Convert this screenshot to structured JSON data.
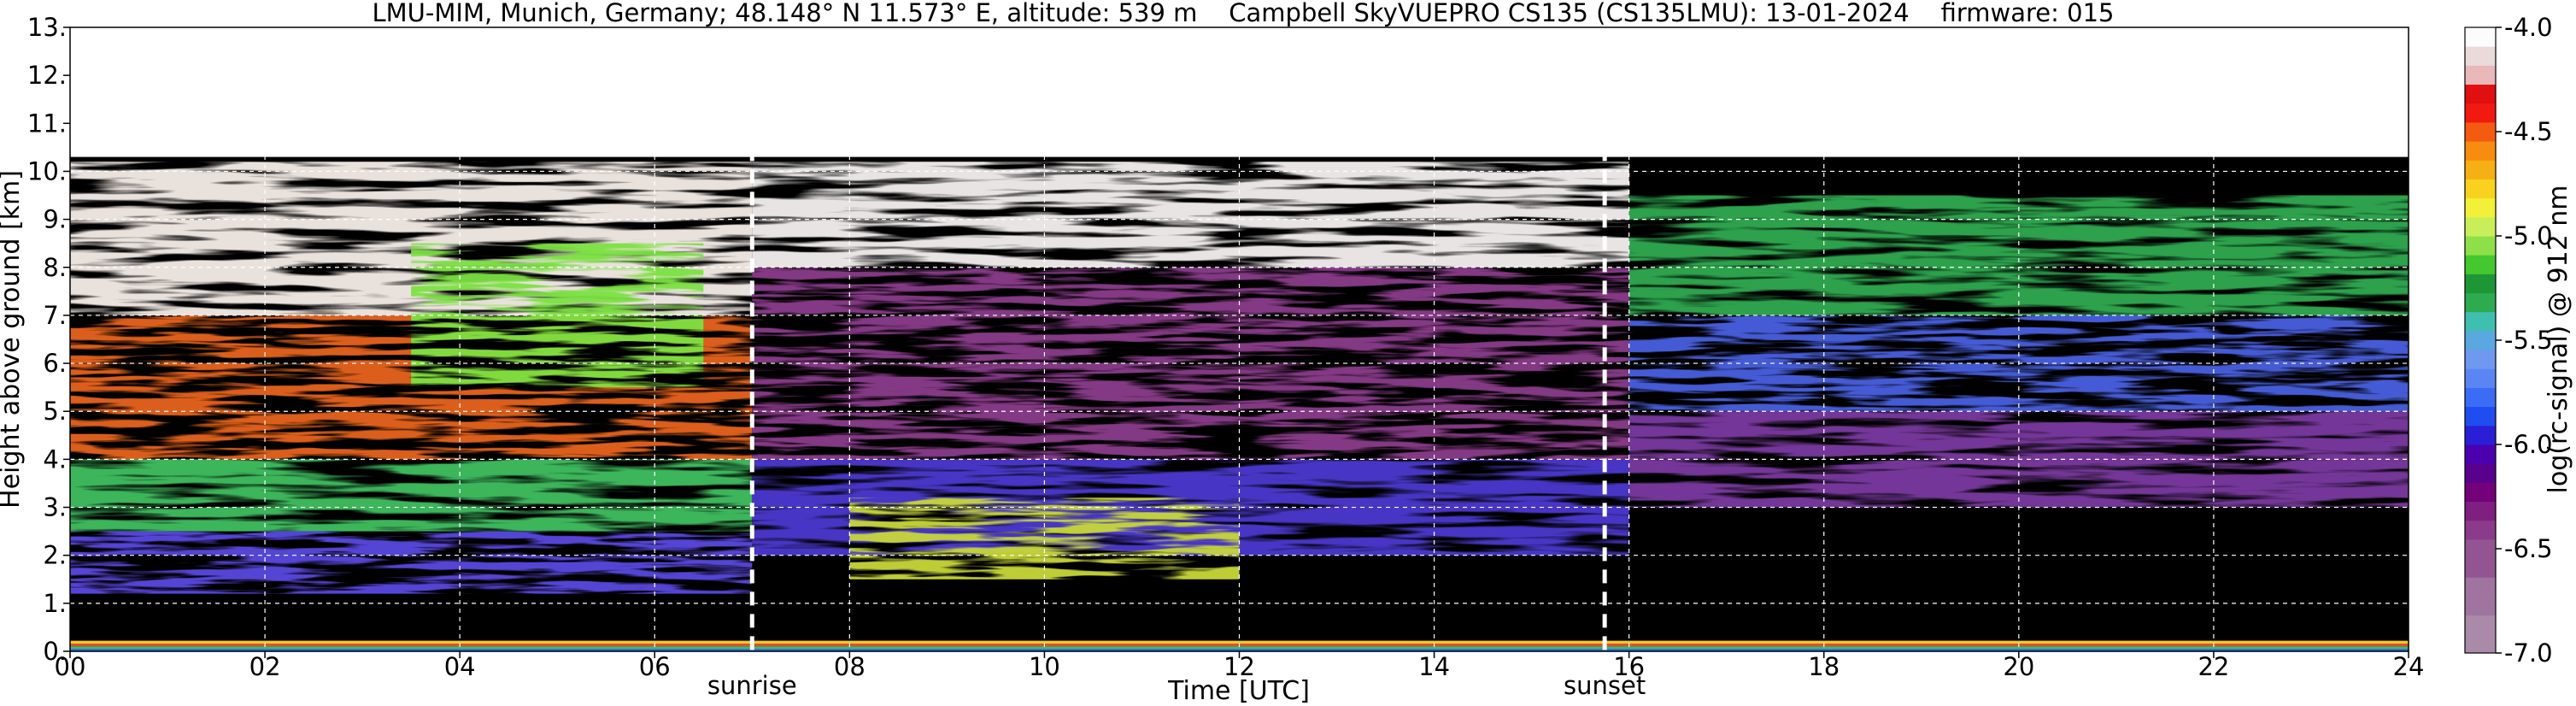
{
  "chart_data": {
    "type": "heatmap",
    "title": "LMU-MIM, Munich, Germany; 48.148° N 11.573° E, altitude: 539 m    Campbell SkyVUEPRO CS135 (CS135LMU): 13-01-2024    firmware: 015",
    "xlabel": "Time [UTC]",
    "ylabel": "Height above ground [km]",
    "xlim": [
      0,
      24
    ],
    "ylim": [
      0,
      13
    ],
    "x_ticks": [
      "00",
      "02",
      "04",
      "06",
      "08",
      "10",
      "12",
      "14",
      "16",
      "18",
      "20",
      "22",
      "24"
    ],
    "y_ticks": [
      "0.",
      "1.",
      "2.",
      "3.",
      "4.",
      "5.",
      "6.",
      "7.",
      "8.",
      "9.",
      "10.",
      "11.",
      "12.",
      "13."
    ],
    "grid": true,
    "events": [
      {
        "label": "sunrise",
        "time": 7.0
      },
      {
        "label": "sunset",
        "time": 15.75
      }
    ],
    "colorbar": {
      "label": "log(rc-signal) @ 912 nm",
      "range": [
        -7.0,
        -4.0
      ],
      "tick_labels": [
        "-4.0",
        "-4.5",
        "-5.0",
        "-5.5",
        "-6.0",
        "-6.5",
        "-7.0"
      ],
      "tick_values": [
        -4.0,
        -4.5,
        -5.0,
        -5.5,
        -6.0,
        -6.5,
        -7.0
      ],
      "colors": [
        "#a98aa8",
        "#a98aa8",
        "#9f759f",
        "#9f759f",
        "#925592",
        "#925592",
        "#8a3b8a",
        "#7f1f7f",
        "#74007a",
        "#5a008f",
        "#4b00b0",
        "#2a1fd6",
        "#1f4ef0",
        "#3a6cf5",
        "#5a86f4",
        "#6f98f0",
        "#5aa8e0",
        "#3fbfb0",
        "#2eaa50",
        "#1e9635",
        "#43c82f",
        "#8ee04a",
        "#c8ef5a",
        "#f3f03a",
        "#f8d21f",
        "#f6b015",
        "#f78c10",
        "#f55b10",
        "#f01a10",
        "#e00f10",
        "#e9b8b8",
        "#eadada",
        "#fcfcfc"
      ]
    },
    "data_extent": {
      "max_height_km": 10.3
    }
  }
}
